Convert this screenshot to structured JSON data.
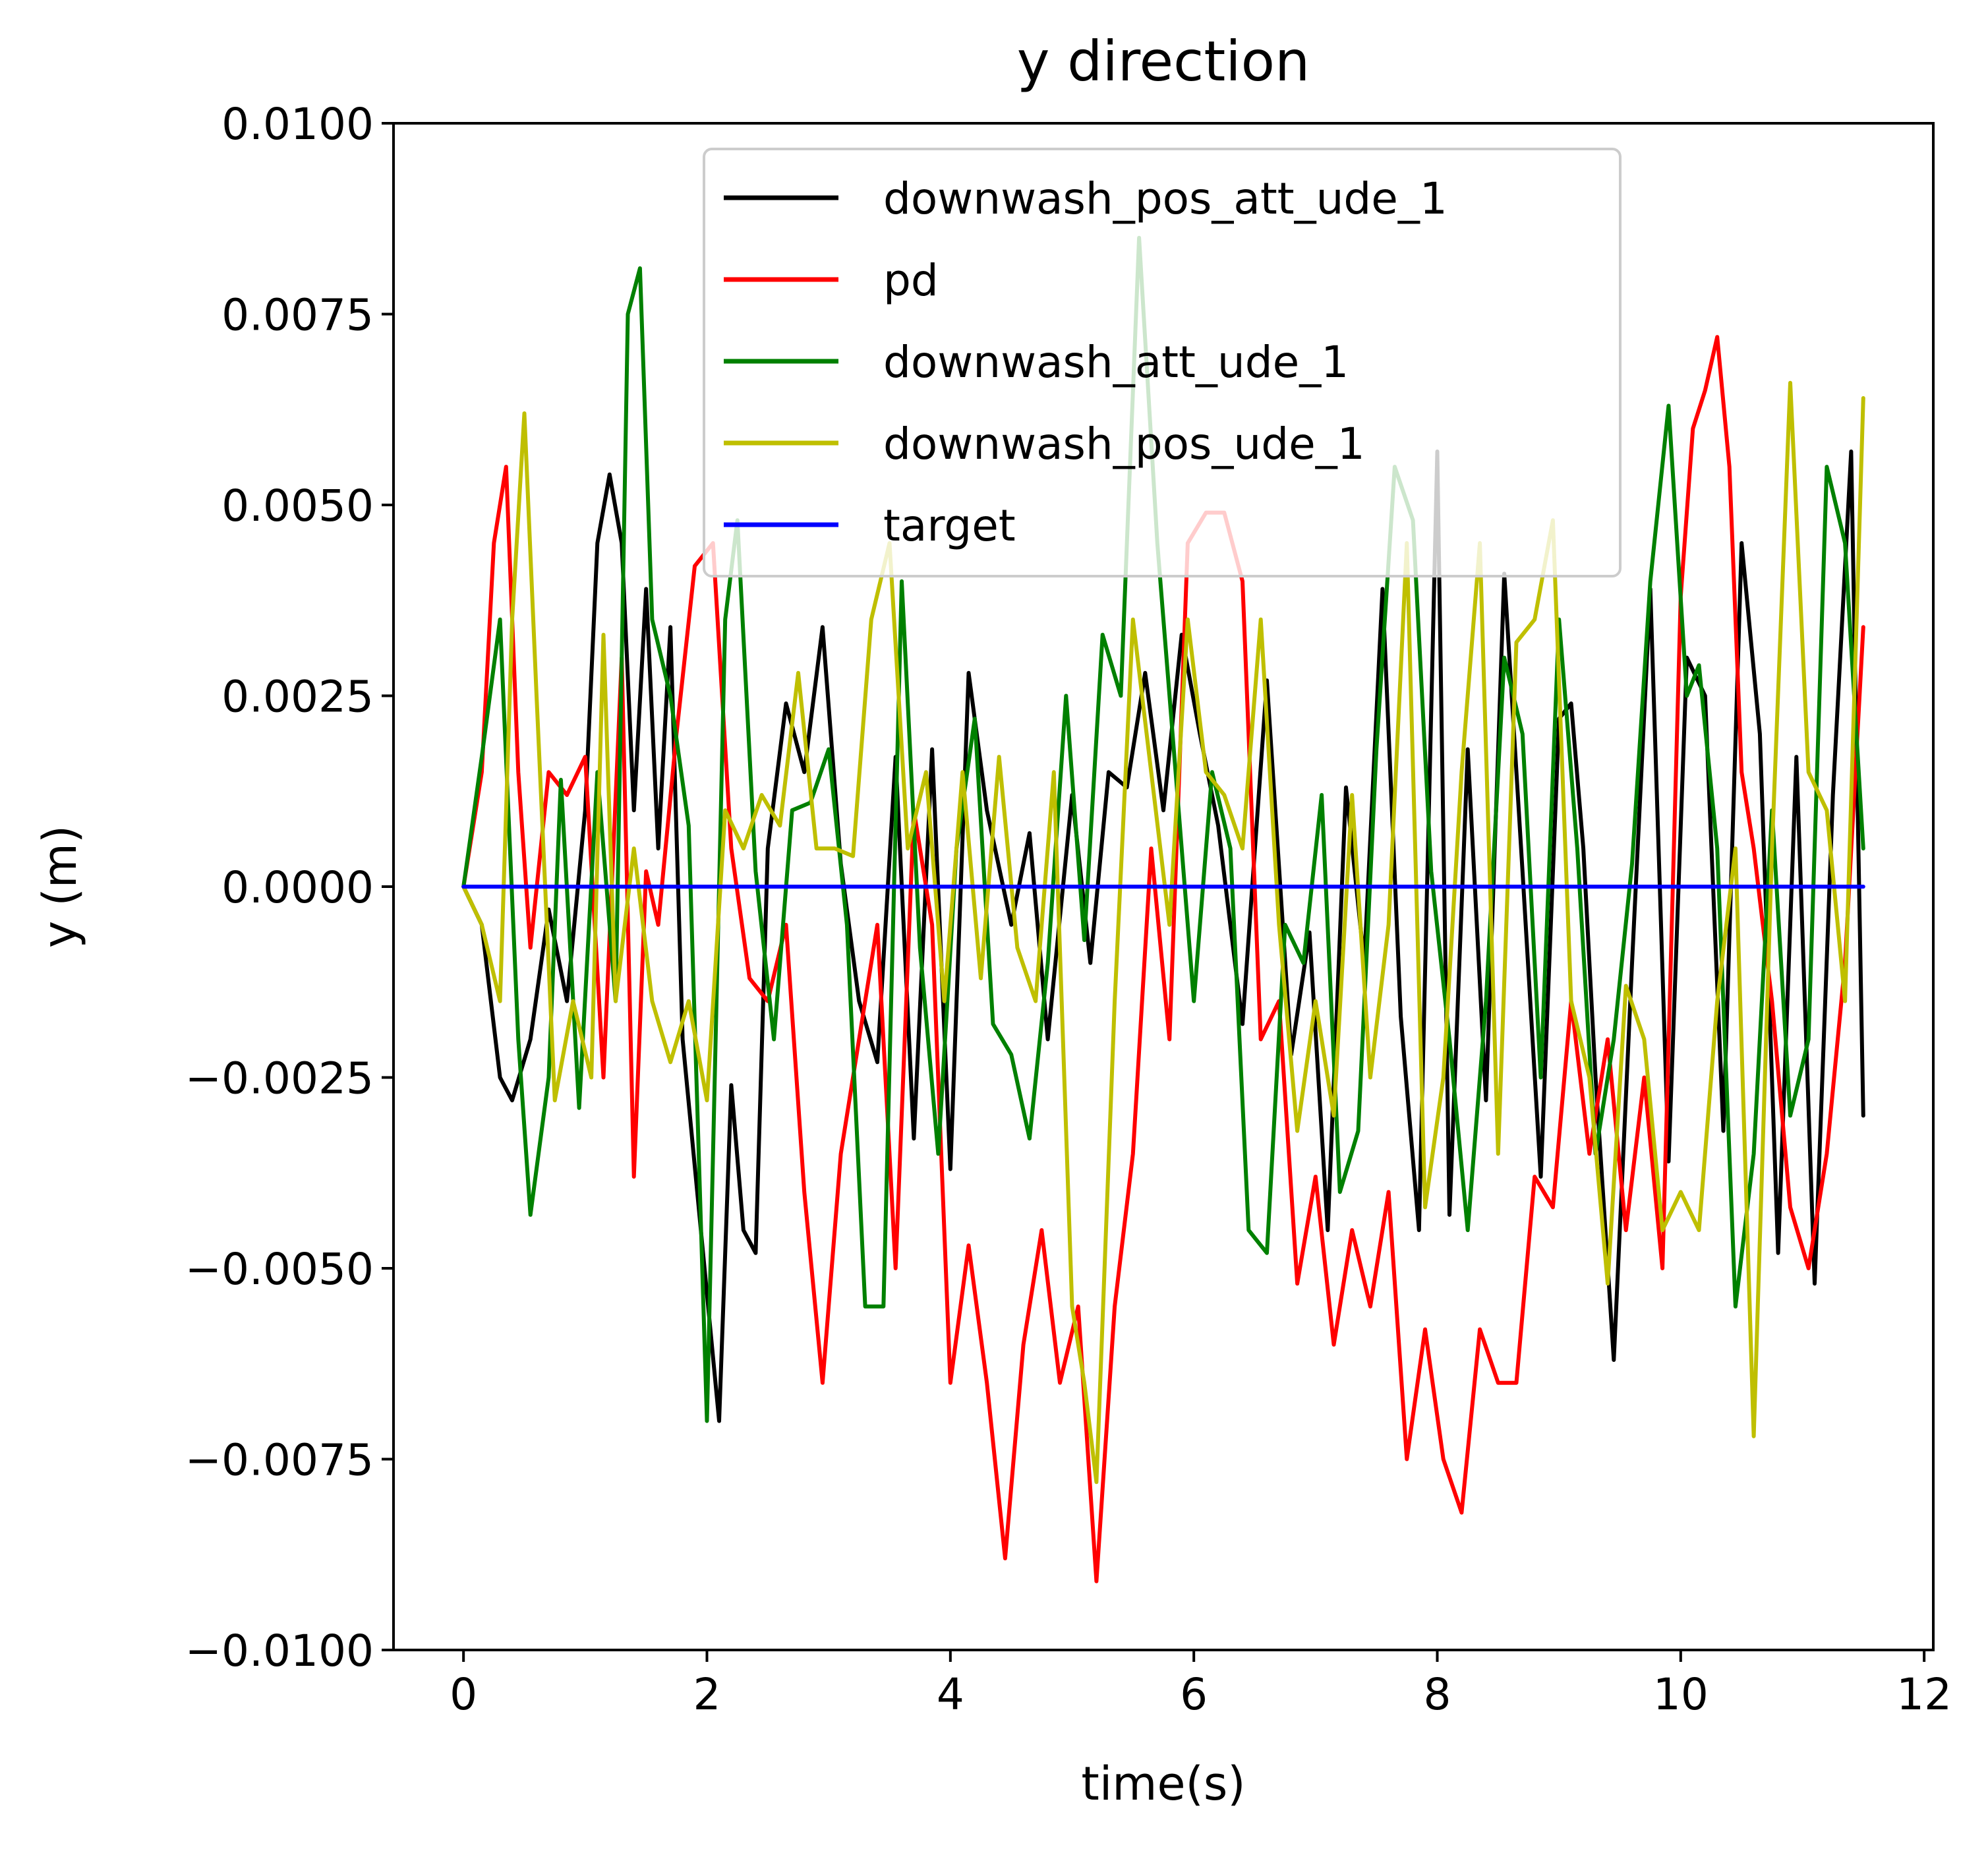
{
  "chart_data": {
    "type": "line",
    "title": "y direction",
    "xlabel": "time(s)",
    "ylabel": "y (m)",
    "xlim": [
      -0.575,
      12.075
    ],
    "ylim": [
      -0.01,
      0.01
    ],
    "xticks": [
      0,
      2,
      4,
      6,
      8,
      10,
      12
    ],
    "xtick_labels": [
      "0",
      "2",
      "4",
      "6",
      "8",
      "10",
      "12"
    ],
    "yticks": [
      0.01,
      0.0075,
      0.005,
      0.0025,
      0.0,
      -0.0025,
      -0.005,
      -0.0075,
      -0.01
    ],
    "ytick_labels": [
      "0.0100",
      "0.0075",
      "0.0050",
      "0.0025",
      "0.0000",
      "−0.0025",
      "−0.0050",
      "−0.0075",
      "−0.0100"
    ],
    "grid": false,
    "legend_position": "upper center",
    "series": [
      {
        "name": "downwash_pos_att_ude_1",
        "color": "#000000",
        "x": [
          0.0,
          0.15,
          0.3,
          0.4,
          0.55,
          0.7,
          0.85,
          1.0,
          1.1,
          1.2,
          1.3,
          1.4,
          1.5,
          1.6,
          1.7,
          1.8,
          1.95,
          2.1,
          2.2,
          2.3,
          2.4,
          2.5,
          2.65,
          2.8,
          2.95,
          3.1,
          3.25,
          3.4,
          3.55,
          3.7,
          3.85,
          4.0,
          4.15,
          4.3,
          4.5,
          4.65,
          4.8,
          5.0,
          5.15,
          5.3,
          5.45,
          5.6,
          5.75,
          5.9,
          6.05,
          6.2,
          6.4,
          6.6,
          6.8,
          6.95,
          7.1,
          7.25,
          7.4,
          7.55,
          7.7,
          7.85,
          8.0,
          8.1,
          8.25,
          8.4,
          8.55,
          8.7,
          8.85,
          9.0,
          9.1,
          9.2,
          9.3,
          9.45,
          9.6,
          9.75,
          9.9,
          10.05,
          10.2,
          10.35,
          10.5,
          10.65,
          10.8,
          10.95,
          11.1,
          11.25,
          11.4,
          11.5
        ],
        "y": [
          0.0,
          -0.0005,
          -0.0025,
          -0.0028,
          -0.002,
          -0.0003,
          -0.0015,
          0.001,
          0.0045,
          0.0054,
          0.0045,
          0.001,
          0.0039,
          0.0005,
          0.0034,
          -0.002,
          -0.0045,
          -0.007,
          -0.0026,
          -0.0045,
          -0.0048,
          0.0005,
          0.0024,
          0.0015,
          0.0034,
          0.0003,
          -0.0015,
          -0.0023,
          0.0017,
          -0.0033,
          0.0018,
          -0.0037,
          0.0028,
          0.001,
          -0.0005,
          0.0007,
          -0.002,
          0.0012,
          -0.001,
          0.0015,
          0.0013,
          0.0028,
          0.001,
          0.0033,
          0.002,
          0.0008,
          -0.0018,
          0.0027,
          -0.0022,
          -0.0006,
          -0.0045,
          0.0013,
          -0.001,
          0.0039,
          -0.0017,
          -0.0045,
          0.0057,
          -0.0043,
          0.0018,
          -0.0028,
          0.0041,
          0.0002,
          -0.0038,
          0.0022,
          0.0024,
          0.0005,
          -0.0025,
          -0.0062,
          -0.001,
          0.0039,
          -0.0036,
          0.003,
          0.0025,
          -0.0032,
          0.0045,
          0.002,
          -0.0048,
          0.0017,
          -0.0052,
          0.0012,
          0.0057,
          -0.003
        ]
      },
      {
        "name": "pd",
        "color": "#ff0000",
        "x": [
          0.0,
          0.15,
          0.25,
          0.35,
          0.45,
          0.55,
          0.7,
          0.85,
          1.0,
          1.15,
          1.3,
          1.4,
          1.5,
          1.6,
          1.75,
          1.9,
          2.05,
          2.2,
          2.35,
          2.5,
          2.65,
          2.8,
          2.95,
          3.1,
          3.25,
          3.4,
          3.55,
          3.7,
          3.85,
          4.0,
          4.15,
          4.3,
          4.45,
          4.6,
          4.75,
          4.9,
          5.05,
          5.2,
          5.35,
          5.5,
          5.65,
          5.8,
          5.95,
          6.1,
          6.25,
          6.4,
          6.55,
          6.7,
          6.85,
          7.0,
          7.15,
          7.3,
          7.45,
          7.6,
          7.75,
          7.9,
          8.05,
          8.2,
          8.35,
          8.5,
          8.65,
          8.8,
          8.95,
          9.1,
          9.25,
          9.4,
          9.55,
          9.7,
          9.85,
          10.0,
          10.1,
          10.2,
          10.3,
          10.4,
          10.5,
          10.6,
          10.75,
          10.9,
          11.05,
          11.2,
          11.35,
          11.5
        ],
        "y": [
          0.0,
          0.0015,
          0.0045,
          0.0055,
          0.0015,
          -0.0008,
          0.0015,
          0.0012,
          0.0017,
          -0.0025,
          0.003,
          -0.0038,
          0.0002,
          -0.0005,
          0.002,
          0.0042,
          0.0045,
          0.0005,
          -0.0012,
          -0.0015,
          -0.0005,
          -0.004,
          -0.0065,
          -0.0035,
          -0.002,
          -0.0005,
          -0.005,
          0.001,
          -0.0005,
          -0.0065,
          -0.0047,
          -0.0065,
          -0.0088,
          -0.006,
          -0.0045,
          -0.0065,
          -0.0055,
          -0.0091,
          -0.0055,
          -0.0035,
          0.0005,
          -0.002,
          0.0045,
          0.0049,
          0.0049,
          0.004,
          -0.002,
          -0.0015,
          -0.0052,
          -0.0038,
          -0.006,
          -0.0045,
          -0.0055,
          -0.004,
          -0.0075,
          -0.0058,
          -0.0075,
          -0.0082,
          -0.0058,
          -0.0065,
          -0.0065,
          -0.0038,
          -0.0042,
          -0.0015,
          -0.0035,
          -0.002,
          -0.0045,
          -0.0025,
          -0.005,
          0.0038,
          0.006,
          0.0065,
          0.0072,
          0.0055,
          0.0015,
          0.0005,
          -0.0015,
          -0.0042,
          -0.005,
          -0.0035,
          -0.001,
          0.0034
        ]
      },
      {
        "name": "downwash_att_ude_1",
        "color": "#008000",
        "x": [
          0.0,
          0.15,
          0.3,
          0.45,
          0.55,
          0.7,
          0.8,
          0.95,
          1.1,
          1.25,
          1.35,
          1.45,
          1.55,
          1.7,
          1.85,
          2.0,
          2.15,
          2.25,
          2.4,
          2.55,
          2.7,
          2.85,
          3.0,
          3.15,
          3.3,
          3.45,
          3.6,
          3.75,
          3.9,
          4.05,
          4.2,
          4.35,
          4.5,
          4.65,
          4.8,
          4.95,
          5.1,
          5.25,
          5.4,
          5.55,
          5.7,
          5.85,
          6.0,
          6.15,
          6.3,
          6.45,
          6.6,
          6.75,
          6.9,
          7.05,
          7.2,
          7.35,
          7.5,
          7.65,
          7.8,
          7.95,
          8.1,
          8.25,
          8.4,
          8.55,
          8.7,
          8.85,
          9.0,
          9.15,
          9.3,
          9.45,
          9.6,
          9.75,
          9.9,
          10.05,
          10.15,
          10.3,
          10.45,
          10.6,
          10.75,
          10.9,
          11.05,
          11.2,
          11.35,
          11.5
        ],
        "y": [
          0.0,
          0.0017,
          0.0035,
          -0.002,
          -0.0043,
          -0.0025,
          0.0014,
          -0.0029,
          0.0015,
          -0.0015,
          0.0075,
          0.0081,
          0.0035,
          0.0025,
          0.0008,
          -0.007,
          0.0035,
          0.0048,
          0.0002,
          -0.002,
          0.001,
          0.0011,
          0.0018,
          -0.0005,
          -0.0055,
          -0.0055,
          0.004,
          -0.0008,
          -0.0035,
          0.0005,
          0.0022,
          -0.0018,
          -0.0022,
          -0.0033,
          -0.001,
          0.0025,
          -0.0007,
          0.0033,
          0.0025,
          0.0085,
          0.0045,
          0.0015,
          -0.0015,
          0.0015,
          0.0005,
          -0.0045,
          -0.0048,
          -0.0005,
          -0.001,
          0.0012,
          -0.004,
          -0.0032,
          0.0018,
          0.0055,
          0.0048,
          0.0002,
          -0.002,
          -0.0045,
          -0.0015,
          0.003,
          0.002,
          -0.0025,
          0.0035,
          0.0005,
          -0.0035,
          -0.002,
          0.0003,
          0.004,
          0.0063,
          0.0025,
          0.0029,
          0.0005,
          -0.0055,
          -0.0035,
          0.001,
          -0.003,
          -0.002,
          0.0055,
          0.0045,
          0.0005
        ]
      },
      {
        "name": "downwash_pos_ude_1",
        "color": "#bfbf00",
        "x": [
          0.0,
          0.15,
          0.3,
          0.4,
          0.5,
          0.6,
          0.75,
          0.9,
          1.05,
          1.15,
          1.25,
          1.4,
          1.55,
          1.7,
          1.85,
          2.0,
          2.15,
          2.3,
          2.45,
          2.6,
          2.75,
          2.9,
          3.05,
          3.2,
          3.35,
          3.5,
          3.65,
          3.8,
          3.95,
          4.1,
          4.25,
          4.4,
          4.55,
          4.7,
          4.85,
          5.0,
          5.1,
          5.2,
          5.35,
          5.5,
          5.65,
          5.8,
          5.95,
          6.1,
          6.25,
          6.4,
          6.55,
          6.7,
          6.85,
          7.0,
          7.15,
          7.3,
          7.45,
          7.6,
          7.75,
          7.9,
          8.05,
          8.2,
          8.35,
          8.5,
          8.65,
          8.8,
          8.95,
          9.1,
          9.25,
          9.4,
          9.55,
          9.7,
          9.85,
          10.0,
          10.15,
          10.3,
          10.45,
          10.6,
          10.75,
          10.9,
          11.05,
          11.2,
          11.35,
          11.5
        ],
        "y": [
          0.0,
          -0.0005,
          -0.0015,
          0.0035,
          0.0062,
          0.0025,
          -0.0028,
          -0.0015,
          -0.0025,
          0.0033,
          -0.0015,
          0.0005,
          -0.0015,
          -0.0023,
          -0.0015,
          -0.0028,
          0.001,
          0.0005,
          0.0012,
          0.0008,
          0.0028,
          0.0005,
          0.0005,
          0.0004,
          0.0035,
          0.0045,
          0.0005,
          0.0015,
          -0.0015,
          0.0015,
          -0.0012,
          0.0017,
          -0.0008,
          -0.0015,
          0.0015,
          -0.0055,
          -0.0065,
          -0.0078,
          -0.0015,
          0.0035,
          0.0015,
          -0.0005,
          0.0035,
          0.0015,
          0.0012,
          0.0005,
          0.0035,
          -0.0005,
          -0.0032,
          -0.0015,
          -0.003,
          0.0012,
          -0.0025,
          -0.0005,
          0.0045,
          -0.0042,
          -0.0025,
          0.0015,
          0.0045,
          -0.0035,
          0.0032,
          0.0035,
          0.0048,
          -0.0015,
          -0.0025,
          -0.0052,
          -0.0013,
          -0.002,
          -0.0045,
          -0.004,
          -0.0045,
          -0.0015,
          0.0005,
          -0.0072,
          0.0005,
          0.0066,
          0.0015,
          0.001,
          -0.0015,
          0.0064
        ]
      },
      {
        "name": "target",
        "color": "#0000ff",
        "x": [
          0.0,
          11.5
        ],
        "y": [
          0.0,
          0.0
        ]
      }
    ]
  }
}
